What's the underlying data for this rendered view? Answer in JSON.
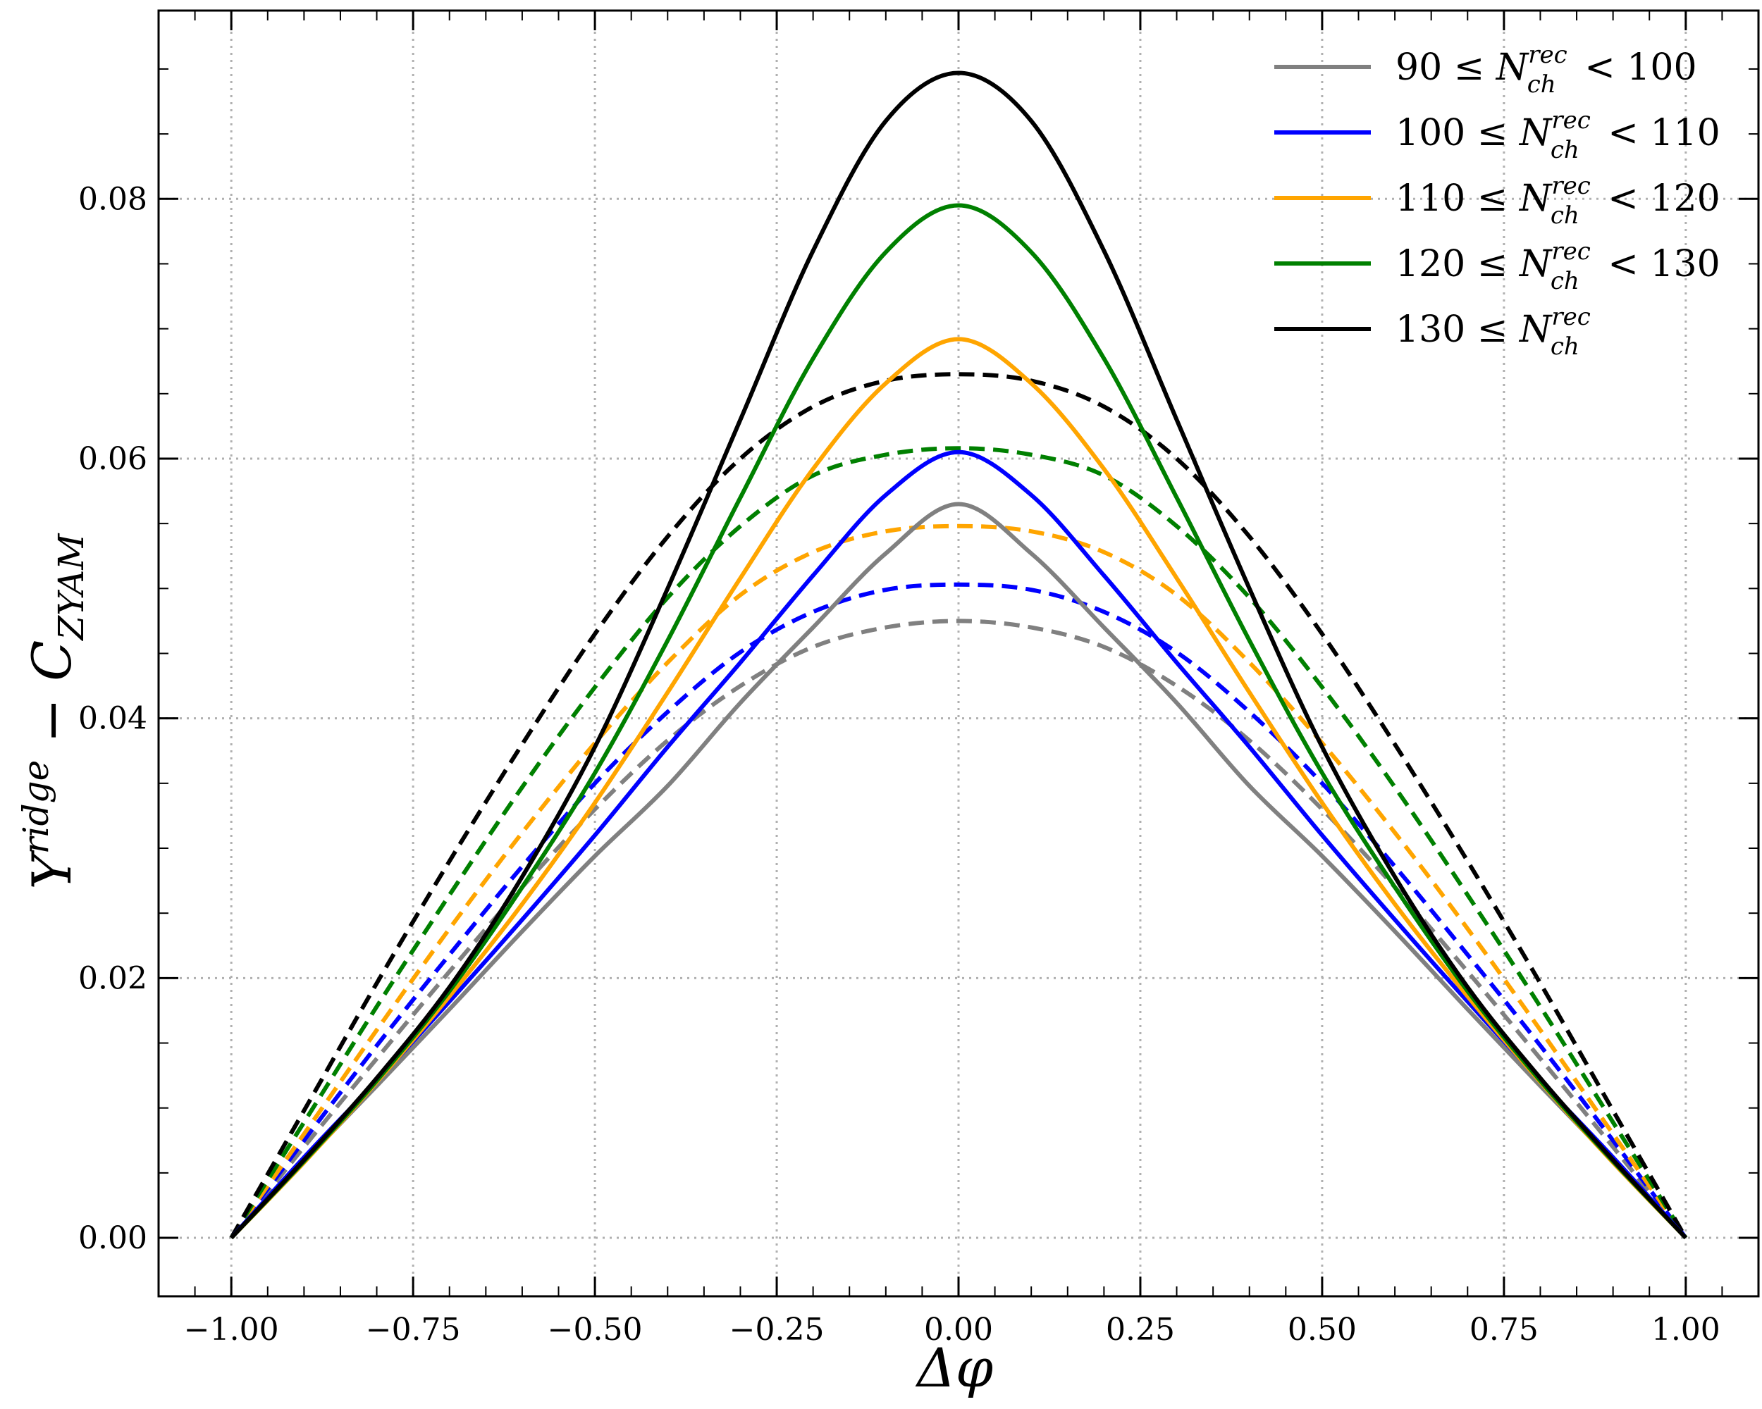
{
  "chart_data": {
    "type": "line",
    "xlabel": "Δφ",
    "ylabel": "Y^{ridge} − C_{ZYAM}",
    "xlim": [
      -1.1,
      1.1
    ],
    "ylim": [
      -0.0045,
      0.0945
    ],
    "x_ticks": [
      -1.0,
      -0.75,
      -0.5,
      -0.25,
      0.0,
      0.25,
      0.5,
      0.75,
      1.0
    ],
    "x_tick_labels": [
      "−1.00",
      "−0.75",
      "−0.50",
      "−0.25",
      "0.00",
      "0.25",
      "0.50",
      "0.75",
      "1.00"
    ],
    "y_ticks": [
      0.0,
      0.02,
      0.04,
      0.06,
      0.08
    ],
    "y_tick_labels": [
      "0.00",
      "0.02",
      "0.04",
      "0.06",
      "0.08"
    ],
    "grid": true,
    "legend_position": "top-right",
    "x": [
      -1.0,
      -0.9,
      -0.8,
      -0.7,
      -0.6,
      -0.5,
      -0.4,
      -0.3,
      -0.2,
      -0.1,
      0.0,
      0.1,
      0.2,
      0.3,
      0.4,
      0.5,
      0.6,
      0.7,
      0.8,
      0.9,
      1.0
    ],
    "series": [
      {
        "legend_lo": "90  ≤ ",
        "legend_hi": " < 100",
        "color": "#808080",
        "dash": false,
        "in_legend": true,
        "values": [
          0.0,
          0.0059,
          0.0117,
          0.0176,
          0.0236,
          0.0294,
          0.0348,
          0.0412,
          0.047,
          0.0527,
          0.0565,
          0.0527,
          0.047,
          0.0412,
          0.0348,
          0.0294,
          0.0236,
          0.0176,
          0.0117,
          0.0059,
          0.0
        ]
      },
      {
        "legend_lo": "100 ≤ ",
        "legend_hi": " < 110",
        "color": "#0000ff",
        "dash": false,
        "in_legend": true,
        "values": [
          0.0,
          0.0062,
          0.0121,
          0.0182,
          0.0245,
          0.031,
          0.0378,
          0.0443,
          0.051,
          0.0572,
          0.0605,
          0.0572,
          0.051,
          0.0443,
          0.0378,
          0.031,
          0.0245,
          0.0182,
          0.0121,
          0.0062,
          0.0
        ]
      },
      {
        "legend_lo": "110 ≤ ",
        "legend_hi": " < 120",
        "color": "#ffa500",
        "dash": false,
        "in_legend": true,
        "values": [
          0.0,
          0.0058,
          0.012,
          0.0186,
          0.0257,
          0.0335,
          0.042,
          0.0508,
          0.0592,
          0.0658,
          0.0692,
          0.0658,
          0.0592,
          0.0508,
          0.042,
          0.0335,
          0.0257,
          0.0186,
          0.012,
          0.0058,
          0.0
        ]
      },
      {
        "legend_lo": "120 ≤ ",
        "legend_hi": " < 130",
        "color": "#008000",
        "dash": false,
        "in_legend": true,
        "values": [
          0.0,
          0.0059,
          0.0121,
          0.019,
          0.027,
          0.0358,
          0.046,
          0.057,
          0.0677,
          0.0759,
          0.0795,
          0.0759,
          0.0677,
          0.057,
          0.046,
          0.0358,
          0.027,
          0.019,
          0.0121,
          0.0059,
          0.0
        ]
      },
      {
        "legend_lo": "130 ≤ ",
        "legend_hi": "",
        "color": "#000000",
        "dash": false,
        "in_legend": true,
        "values": [
          0.0,
          0.006,
          0.0123,
          0.0193,
          0.0278,
          0.0378,
          0.05,
          0.063,
          0.076,
          0.086,
          0.0897,
          0.086,
          0.076,
          0.063,
          0.05,
          0.0378,
          0.0278,
          0.0193,
          0.0123,
          0.006,
          0.0
        ]
      },
      {
        "color": "#808080",
        "dash": true,
        "in_legend": false,
        "values": [
          0.0,
          0.007,
          0.0138,
          0.0205,
          0.027,
          0.033,
          0.0383,
          0.0425,
          0.0455,
          0.047,
          0.0475,
          0.047,
          0.0455,
          0.0425,
          0.0383,
          0.033,
          0.027,
          0.0205,
          0.0138,
          0.007,
          0.0
        ]
      },
      {
        "color": "#0000ff",
        "dash": true,
        "in_legend": false,
        "values": [
          0.0,
          0.0075,
          0.0148,
          0.0218,
          0.0286,
          0.035,
          0.0405,
          0.0451,
          0.0482,
          0.0499,
          0.0503,
          0.0499,
          0.0482,
          0.0451,
          0.0405,
          0.035,
          0.0286,
          0.0218,
          0.0148,
          0.0075,
          0.0
        ]
      },
      {
        "color": "#ffa500",
        "dash": true,
        "in_legend": false,
        "values": [
          0.0,
          0.008,
          0.016,
          0.0238,
          0.0312,
          0.0381,
          0.0443,
          0.0495,
          0.0528,
          0.0544,
          0.0548,
          0.0544,
          0.0528,
          0.0495,
          0.0443,
          0.0381,
          0.0312,
          0.0238,
          0.016,
          0.008,
          0.0
        ]
      },
      {
        "color": "#008000",
        "dash": true,
        "in_legend": false,
        "values": [
          0.0,
          0.0089,
          0.0178,
          0.0264,
          0.0347,
          0.0424,
          0.0493,
          0.0548,
          0.0587,
          0.0603,
          0.0608,
          0.0603,
          0.0587,
          0.0548,
          0.0493,
          0.0424,
          0.0347,
          0.0264,
          0.0178,
          0.0089,
          0.0
        ]
      },
      {
        "color": "#000000",
        "dash": true,
        "in_legend": false,
        "values": [
          0.0,
          0.0098,
          0.0196,
          0.029,
          0.038,
          0.0465,
          0.054,
          0.06,
          0.064,
          0.066,
          0.0665,
          0.066,
          0.064,
          0.06,
          0.054,
          0.0465,
          0.038,
          0.029,
          0.0196,
          0.0098,
          0.0
        ]
      }
    ],
    "legend_symbol": "N",
    "legend_sup": "rec",
    "legend_sub": "ch"
  }
}
